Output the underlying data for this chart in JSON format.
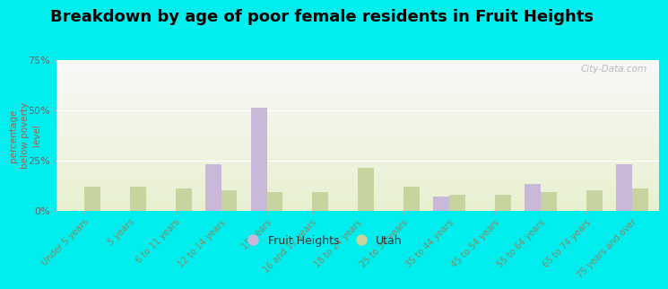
{
  "title": "Breakdown by age of poor female residents in Fruit Heights",
  "categories": [
    "Under 5 years",
    "5 years",
    "6 to 11 years",
    "12 to 14 years",
    "15 years",
    "16 and 17 years",
    "18 to 24 years",
    "25 to 34 years",
    "35 to 44 years",
    "45 to 54 years",
    "55 to 64 years",
    "65 to 74 years",
    "75 years and over"
  ],
  "fruit_heights": [
    0,
    0,
    0,
    23,
    51,
    0,
    0,
    0,
    7,
    0,
    13,
    0,
    23
  ],
  "utah": [
    12,
    12,
    11,
    10,
    9,
    9,
    21,
    12,
    8,
    8,
    9,
    10,
    11
  ],
  "fruit_heights_color": "#c9b8d8",
  "utah_color": "#c8d4a0",
  "background_color": "#00eeee",
  "plot_bg_top": "#f8f8f8",
  "plot_bg_bottom": "#e8f0d0",
  "ylabel": "percentage\nbelow poverty\nlevel",
  "ylim": [
    0,
    75
  ],
  "yticks": [
    0,
    25,
    50,
    75
  ],
  "ytick_labels": [
    "0%",
    "25%",
    "50%",
    "75%"
  ],
  "title_fontsize": 13,
  "bar_width": 0.35,
  "legend_labels": [
    "Fruit Heights",
    "Utah"
  ],
  "watermark": "City-Data.com"
}
